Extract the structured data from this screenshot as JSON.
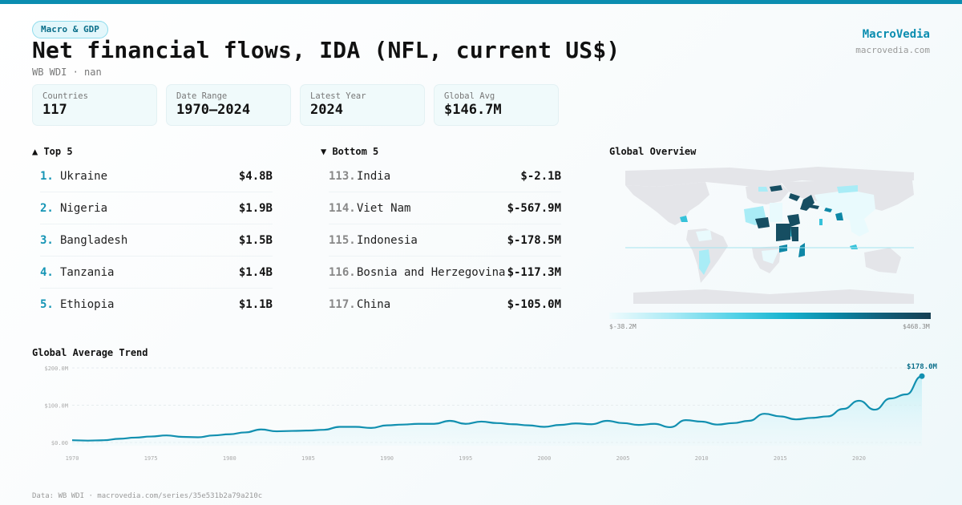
{
  "header": {
    "category_pill": "Macro & GDP",
    "title": "Net financial flows, IDA (NFL, current US$)",
    "subtitle": "WB WDI · nan",
    "brand_name": "MacroVedia",
    "brand_url": "macrovedia.com",
    "accent_color": "#0b8db0"
  },
  "stats": [
    {
      "label": "Countries",
      "value": "117"
    },
    {
      "label": "Date Range",
      "value": "1970–2024"
    },
    {
      "label": "Latest Year",
      "value": "2024"
    },
    {
      "label": "Global Avg",
      "value": "$146.7M"
    }
  ],
  "top5": {
    "heading": "▲ Top 5",
    "items": [
      {
        "rank": "1.",
        "name": "Ukraine",
        "value": "$4.8B"
      },
      {
        "rank": "2.",
        "name": "Nigeria",
        "value": "$1.9B"
      },
      {
        "rank": "3.",
        "name": "Bangladesh",
        "value": "$1.5B"
      },
      {
        "rank": "4.",
        "name": "Tanzania",
        "value": "$1.4B"
      },
      {
        "rank": "5.",
        "name": "Ethiopia",
        "value": "$1.1B"
      }
    ]
  },
  "bottom5": {
    "heading": "▼ Bottom 5",
    "items": [
      {
        "rank": "113.",
        "name": "India",
        "value": "$-2.1B"
      },
      {
        "rank": "114.",
        "name": "Viet Nam",
        "value": "$-567.9M"
      },
      {
        "rank": "115.",
        "name": "Indonesia",
        "value": "$-178.5M"
      },
      {
        "rank": "116.",
        "name": "Bosnia and Herzegovina",
        "value": "$-117.3M"
      },
      {
        "rank": "117.",
        "name": "China",
        "value": "$-105.0M"
      }
    ]
  },
  "map": {
    "title": "Global Overview",
    "legend_min": "$-38.2M",
    "legend_max": "$468.3M"
  },
  "trend": {
    "title": "Global Average Trend",
    "y_ticks": [
      "$200.0M",
      "$100.0M",
      "$0.00"
    ],
    "x_ticks": [
      "1970",
      "1975",
      "1980",
      "1985",
      "1990",
      "1995",
      "2000",
      "2005",
      "2010",
      "2015",
      "2020"
    ],
    "last_label": "$178.0M"
  },
  "footer": "Data: WB WDI · macrovedia.com/series/35e531b2a79a210c",
  "chart_data": {
    "type": "area",
    "title": "Global Average Trend",
    "xlabel": "",
    "ylabel": "",
    "ylim": [
      0,
      200
    ],
    "grid": true,
    "x": [
      1970,
      1971,
      1972,
      1973,
      1974,
      1975,
      1976,
      1977,
      1978,
      1979,
      1980,
      1981,
      1982,
      1983,
      1984,
      1985,
      1986,
      1987,
      1988,
      1989,
      1990,
      1991,
      1992,
      1993,
      1994,
      1995,
      1996,
      1997,
      1998,
      1999,
      2000,
      2001,
      2002,
      2003,
      2004,
      2005,
      2006,
      2007,
      2008,
      2009,
      2010,
      2011,
      2012,
      2013,
      2014,
      2015,
      2016,
      2017,
      2018,
      2019,
      2020,
      2021,
      2022,
      2023,
      2024
    ],
    "series": [
      {
        "name": "Global average (US$ M)",
        "values": [
          6,
          5,
          6,
          10,
          13,
          16,
          19,
          15,
          14,
          19,
          22,
          27,
          35,
          30,
          31,
          32,
          34,
          42,
          42,
          39,
          46,
          48,
          50,
          50,
          58,
          50,
          56,
          52,
          49,
          46,
          42,
          47,
          51,
          49,
          58,
          52,
          47,
          50,
          41,
          60,
          56,
          48,
          52,
          58,
          77,
          70,
          62,
          66,
          70,
          90,
          112,
          88,
          118,
          129,
          178
        ]
      }
    ],
    "y_ticks": [
      "$0.00",
      "$100.0M",
      "$200.0M"
    ],
    "x_ticks": [
      "1970",
      "1975",
      "1980",
      "1985",
      "1990",
      "1995",
      "2000",
      "2005",
      "2010",
      "2015",
      "2020"
    ],
    "annotation": {
      "x": 2024,
      "label": "$178.0M"
    }
  }
}
